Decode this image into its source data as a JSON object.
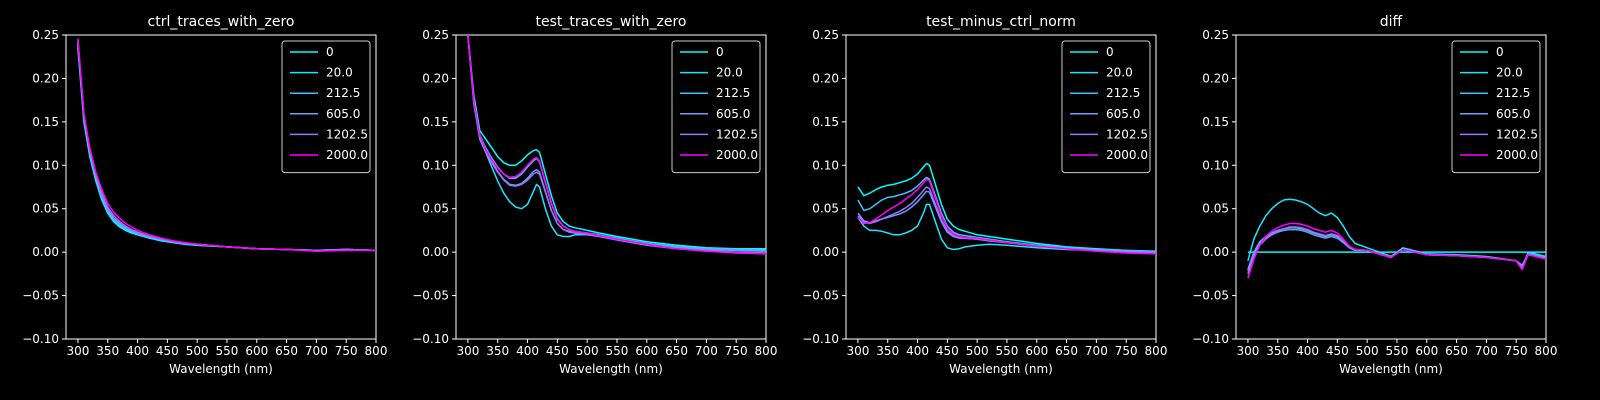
{
  "figure": {
    "background": "#000000",
    "foreground": "#ffffff"
  },
  "chart_data": [
    {
      "type": "line",
      "title": "ctrl_traces_with_zero",
      "xlabel": "Wavelength (nm)",
      "ylabel": "",
      "xlim": [
        280,
        800
      ],
      "ylim": [
        -0.1,
        0.25
      ],
      "xticks": [
        300,
        350,
        400,
        450,
        500,
        550,
        600,
        650,
        700,
        750,
        800
      ],
      "yticks": [
        -0.1,
        -0.05,
        0.0,
        0.05,
        0.1,
        0.15,
        0.2,
        0.25
      ],
      "ytick_labels": [
        "−0.10",
        "−0.05",
        "0.00",
        "0.05",
        "0.10",
        "0.15",
        "0.20",
        "0.25"
      ],
      "grid": false,
      "legend": "top-right",
      "x": [
        300,
        310,
        320,
        330,
        340,
        350,
        360,
        370,
        380,
        390,
        400,
        420,
        440,
        460,
        480,
        500,
        550,
        600,
        650,
        700,
        750,
        800
      ],
      "series": [
        {
          "name": "0",
          "color": "#00ffff",
          "values": [
            0.235,
            0.15,
            0.11,
            0.082,
            0.06,
            0.045,
            0.035,
            0.029,
            0.025,
            0.022,
            0.02,
            0.016,
            0.013,
            0.011,
            0.009,
            0.008,
            0.006,
            0.004,
            0.003,
            0.002,
            0.003,
            0.002
          ]
        },
        {
          "name": "20.0",
          "color": "#19e6ff",
          "values": [
            0.238,
            0.152,
            0.112,
            0.084,
            0.062,
            0.046,
            0.036,
            0.03,
            0.026,
            0.023,
            0.021,
            0.017,
            0.014,
            0.011,
            0.009,
            0.008,
            0.006,
            0.004,
            0.003,
            0.002,
            0.003,
            0.002
          ]
        },
        {
          "name": "212.5",
          "color": "#40bfff",
          "values": [
            0.24,
            0.154,
            0.114,
            0.086,
            0.063,
            0.047,
            0.037,
            0.031,
            0.027,
            0.024,
            0.021,
            0.017,
            0.014,
            0.012,
            0.01,
            0.009,
            0.006,
            0.004,
            0.003,
            0.002,
            0.003,
            0.002
          ]
        },
        {
          "name": "605.0",
          "color": "#66a0ff",
          "values": [
            0.242,
            0.156,
            0.116,
            0.088,
            0.065,
            0.049,
            0.039,
            0.033,
            0.028,
            0.025,
            0.022,
            0.018,
            0.015,
            0.012,
            0.01,
            0.009,
            0.006,
            0.004,
            0.003,
            0.002,
            0.003,
            0.002
          ]
        },
        {
          "name": "1202.5",
          "color": "#a070ff",
          "values": [
            0.244,
            0.158,
            0.118,
            0.09,
            0.068,
            0.052,
            0.042,
            0.035,
            0.03,
            0.026,
            0.023,
            0.018,
            0.015,
            0.012,
            0.01,
            0.009,
            0.006,
            0.004,
            0.003,
            0.002,
            0.003,
            0.002
          ]
        },
        {
          "name": "2000.0",
          "color": "#ff00ff",
          "values": [
            0.246,
            0.16,
            0.12,
            0.092,
            0.072,
            0.056,
            0.046,
            0.039,
            0.033,
            0.029,
            0.025,
            0.02,
            0.016,
            0.013,
            0.011,
            0.009,
            0.006,
            0.004,
            0.003,
            0.001,
            0.002,
            0.002
          ]
        }
      ]
    },
    {
      "type": "line",
      "title": "test_traces_with_zero",
      "xlabel": "Wavelength (nm)",
      "ylabel": "",
      "xlim": [
        280,
        800
      ],
      "ylim": [
        -0.1,
        0.25
      ],
      "xticks": [
        300,
        350,
        400,
        450,
        500,
        550,
        600,
        650,
        700,
        750,
        800
      ],
      "yticks": [
        -0.1,
        -0.05,
        0.0,
        0.05,
        0.1,
        0.15,
        0.2,
        0.25
      ],
      "ytick_labels": [
        "−0.10",
        "−0.05",
        "0.00",
        "0.05",
        "0.10",
        "0.15",
        "0.20",
        "0.25"
      ],
      "grid": false,
      "legend": "top-right",
      "x": [
        300,
        310,
        320,
        330,
        340,
        350,
        360,
        370,
        380,
        390,
        400,
        410,
        415,
        420,
        430,
        440,
        450,
        460,
        470,
        480,
        500,
        520,
        550,
        600,
        650,
        700,
        750,
        800
      ],
      "series": [
        {
          "name": "0",
          "color": "#00ffff",
          "values": [
            0.25,
            0.18,
            0.14,
            0.13,
            0.12,
            0.11,
            0.103,
            0.1,
            0.1,
            0.105,
            0.112,
            0.117,
            0.118,
            0.115,
            0.09,
            0.065,
            0.045,
            0.035,
            0.03,
            0.028,
            0.025,
            0.022,
            0.018,
            0.012,
            0.008,
            0.005,
            0.004,
            0.004
          ]
        },
        {
          "name": "20.0",
          "color": "#19e6ff",
          "values": [
            0.25,
            0.17,
            0.13,
            0.115,
            0.098,
            0.082,
            0.068,
            0.058,
            0.052,
            0.05,
            0.055,
            0.07,
            0.078,
            0.075,
            0.05,
            0.03,
            0.02,
            0.018,
            0.018,
            0.02,
            0.02,
            0.019,
            0.016,
            0.01,
            0.006,
            0.004,
            0.003,
            0.003
          ]
        },
        {
          "name": "212.5",
          "color": "#40bfff",
          "values": [
            0.25,
            0.175,
            0.135,
            0.12,
            0.108,
            0.098,
            0.09,
            0.085,
            0.085,
            0.09,
            0.098,
            0.105,
            0.108,
            0.104,
            0.08,
            0.056,
            0.038,
            0.03,
            0.026,
            0.024,
            0.022,
            0.02,
            0.016,
            0.01,
            0.006,
            0.004,
            0.003,
            0.002
          ]
        },
        {
          "name": "605.0",
          "color": "#66a0ff",
          "values": [
            0.25,
            0.172,
            0.132,
            0.117,
            0.104,
            0.093,
            0.084,
            0.078,
            0.077,
            0.079,
            0.085,
            0.093,
            0.095,
            0.092,
            0.07,
            0.048,
            0.033,
            0.026,
            0.024,
            0.022,
            0.021,
            0.019,
            0.015,
            0.009,
            0.005,
            0.003,
            0.002,
            0.001
          ]
        },
        {
          "name": "1202.5",
          "color": "#a070ff",
          "values": [
            0.25,
            0.172,
            0.132,
            0.116,
            0.103,
            0.092,
            0.083,
            0.077,
            0.076,
            0.078,
            0.083,
            0.09,
            0.092,
            0.09,
            0.069,
            0.048,
            0.033,
            0.026,
            0.023,
            0.022,
            0.02,
            0.018,
            0.014,
            0.008,
            0.004,
            0.002,
            0.0,
            -0.001
          ]
        },
        {
          "name": "2000.0",
          "color": "#ff00ff",
          "values": [
            0.25,
            0.174,
            0.134,
            0.118,
            0.106,
            0.097,
            0.09,
            0.086,
            0.087,
            0.092,
            0.1,
            0.107,
            0.109,
            0.105,
            0.081,
            0.057,
            0.039,
            0.03,
            0.026,
            0.024,
            0.022,
            0.019,
            0.015,
            0.009,
            0.004,
            0.001,
            -0.001,
            -0.002
          ]
        }
      ]
    },
    {
      "type": "line",
      "title": "test_minus_ctrl_norm",
      "xlabel": "Wavelength (nm)",
      "ylabel": "",
      "xlim": [
        280,
        800
      ],
      "ylim": [
        -0.1,
        0.25
      ],
      "xticks": [
        300,
        350,
        400,
        450,
        500,
        550,
        600,
        650,
        700,
        750,
        800
      ],
      "yticks": [
        -0.1,
        -0.05,
        0.0,
        0.05,
        0.1,
        0.15,
        0.2,
        0.25
      ],
      "ytick_labels": [
        "−0.10",
        "−0.05",
        "0.00",
        "0.05",
        "0.10",
        "0.15",
        "0.20",
        "0.25"
      ],
      "grid": false,
      "legend": "top-right",
      "x": [
        300,
        310,
        320,
        330,
        340,
        350,
        360,
        370,
        380,
        390,
        400,
        410,
        415,
        420,
        430,
        440,
        450,
        460,
        470,
        480,
        500,
        520,
        550,
        600,
        650,
        700,
        750,
        800
      ],
      "series": [
        {
          "name": "0",
          "color": "#00ffff",
          "values": [
            0.075,
            0.065,
            0.068,
            0.072,
            0.075,
            0.077,
            0.078,
            0.08,
            0.082,
            0.085,
            0.09,
            0.098,
            0.102,
            0.1,
            0.078,
            0.055,
            0.038,
            0.03,
            0.026,
            0.024,
            0.02,
            0.018,
            0.015,
            0.01,
            0.006,
            0.004,
            0.002,
            0.001
          ]
        },
        {
          "name": "20.0",
          "color": "#19e6ff",
          "values": [
            0.04,
            0.03,
            0.025,
            0.025,
            0.024,
            0.022,
            0.02,
            0.02,
            0.022,
            0.025,
            0.03,
            0.045,
            0.055,
            0.055,
            0.035,
            0.015,
            0.005,
            0.003,
            0.004,
            0.006,
            0.008,
            0.009,
            0.008,
            0.005,
            0.003,
            0.002,
            0.001,
            -0.002
          ]
        },
        {
          "name": "212.5",
          "color": "#40bfff",
          "values": [
            0.06,
            0.048,
            0.05,
            0.055,
            0.06,
            0.063,
            0.064,
            0.066,
            0.068,
            0.071,
            0.076,
            0.083,
            0.086,
            0.084,
            0.065,
            0.045,
            0.03,
            0.023,
            0.02,
            0.019,
            0.017,
            0.015,
            0.012,
            0.008,
            0.005,
            0.003,
            0.002,
            0.0
          ]
        },
        {
          "name": "605.0",
          "color": "#66a0ff",
          "values": [
            0.045,
            0.036,
            0.034,
            0.036,
            0.038,
            0.04,
            0.042,
            0.044,
            0.047,
            0.052,
            0.058,
            0.066,
            0.07,
            0.069,
            0.052,
            0.035,
            0.023,
            0.018,
            0.016,
            0.016,
            0.015,
            0.013,
            0.011,
            0.007,
            0.004,
            0.002,
            0.001,
            0.0
          ]
        },
        {
          "name": "1202.5",
          "color": "#a070ff",
          "values": [
            0.042,
            0.034,
            0.033,
            0.035,
            0.038,
            0.041,
            0.044,
            0.047,
            0.051,
            0.056,
            0.063,
            0.071,
            0.075,
            0.073,
            0.055,
            0.037,
            0.025,
            0.019,
            0.017,
            0.016,
            0.015,
            0.013,
            0.011,
            0.007,
            0.004,
            0.002,
            0.0,
            -0.001
          ]
        },
        {
          "name": "2000.0",
          "color": "#ff00ff",
          "values": [
            0.04,
            0.033,
            0.034,
            0.038,
            0.043,
            0.048,
            0.052,
            0.056,
            0.061,
            0.066,
            0.072,
            0.08,
            0.084,
            0.082,
            0.062,
            0.042,
            0.028,
            0.021,
            0.018,
            0.017,
            0.016,
            0.014,
            0.011,
            0.007,
            0.004,
            0.001,
            -0.001,
            -0.002
          ]
        }
      ]
    },
    {
      "type": "line",
      "title": "diff",
      "xlabel": "Wavelength (nm)",
      "ylabel": "",
      "xlim": [
        280,
        800
      ],
      "ylim": [
        -0.1,
        0.25
      ],
      "xticks": [
        300,
        350,
        400,
        450,
        500,
        550,
        600,
        650,
        700,
        750,
        800
      ],
      "yticks": [
        -0.1,
        -0.05,
        0.0,
        0.05,
        0.1,
        0.15,
        0.2,
        0.25
      ],
      "ytick_labels": [
        "−0.10",
        "−0.05",
        "0.00",
        "0.05",
        "0.10",
        "0.15",
        "0.20",
        "0.25"
      ],
      "grid": false,
      "legend": "top-right",
      "x": [
        300,
        310,
        320,
        330,
        340,
        350,
        360,
        370,
        380,
        390,
        400,
        410,
        420,
        430,
        440,
        450,
        460,
        470,
        480,
        500,
        520,
        540,
        560,
        600,
        650,
        700,
        750,
        760,
        770,
        800
      ],
      "series": [
        {
          "name": "0",
          "color": "#00ffff",
          "values": [
            0.0,
            0.0,
            0.0,
            0.0,
            0.0,
            0.0,
            0.0,
            0.0,
            0.0,
            0.0,
            0.0,
            0.0,
            0.0,
            0.0,
            0.0,
            0.0,
            0.0,
            0.0,
            0.0,
            0.0,
            0.0,
            0.0,
            0.0,
            0.0,
            0.0,
            0.0,
            0.0,
            0.0,
            0.0,
            0.0
          ]
        },
        {
          "name": "20.0",
          "color": "#19e6ff",
          "values": [
            -0.01,
            0.015,
            0.03,
            0.042,
            0.05,
            0.056,
            0.06,
            0.061,
            0.06,
            0.058,
            0.055,
            0.05,
            0.045,
            0.042,
            0.045,
            0.04,
            0.03,
            0.018,
            0.01,
            0.005,
            0.0,
            -0.005,
            0.005,
            -0.002,
            -0.003,
            -0.005,
            -0.01,
            -0.02,
            0.0,
            -0.005
          ]
        },
        {
          "name": "212.5",
          "color": "#40bfff",
          "values": [
            -0.02,
            0.0,
            0.012,
            0.018,
            0.022,
            0.025,
            0.027,
            0.028,
            0.028,
            0.027,
            0.025,
            0.022,
            0.02,
            0.018,
            0.02,
            0.018,
            0.012,
            0.006,
            0.003,
            0.002,
            -0.002,
            -0.006,
            0.003,
            -0.003,
            -0.004,
            -0.006,
            -0.01,
            -0.015,
            -0.002,
            -0.006
          ]
        },
        {
          "name": "605.0",
          "color": "#66a0ff",
          "values": [
            -0.022,
            -0.002,
            0.01,
            0.016,
            0.02,
            0.023,
            0.025,
            0.026,
            0.026,
            0.025,
            0.023,
            0.02,
            0.018,
            0.016,
            0.018,
            0.016,
            0.011,
            0.005,
            0.002,
            0.002,
            -0.002,
            -0.006,
            0.003,
            -0.003,
            -0.004,
            -0.006,
            -0.01,
            -0.016,
            -0.002,
            -0.006
          ]
        },
        {
          "name": "1202.5",
          "color": "#a070ff",
          "values": [
            -0.025,
            -0.005,
            0.008,
            0.015,
            0.02,
            0.024,
            0.027,
            0.029,
            0.029,
            0.028,
            0.026,
            0.023,
            0.021,
            0.019,
            0.021,
            0.019,
            0.013,
            0.006,
            0.003,
            0.002,
            -0.002,
            -0.006,
            0.003,
            -0.003,
            -0.004,
            -0.006,
            -0.01,
            -0.018,
            -0.003,
            -0.007
          ]
        },
        {
          "name": "2000.0",
          "color": "#ff00ff",
          "values": [
            -0.03,
            -0.008,
            0.008,
            0.018,
            0.024,
            0.028,
            0.031,
            0.033,
            0.033,
            0.032,
            0.03,
            0.027,
            0.025,
            0.023,
            0.025,
            0.022,
            0.015,
            0.007,
            0.003,
            0.002,
            -0.002,
            -0.006,
            0.003,
            -0.003,
            -0.004,
            -0.006,
            -0.01,
            -0.02,
            -0.003,
            -0.008
          ]
        }
      ]
    }
  ]
}
